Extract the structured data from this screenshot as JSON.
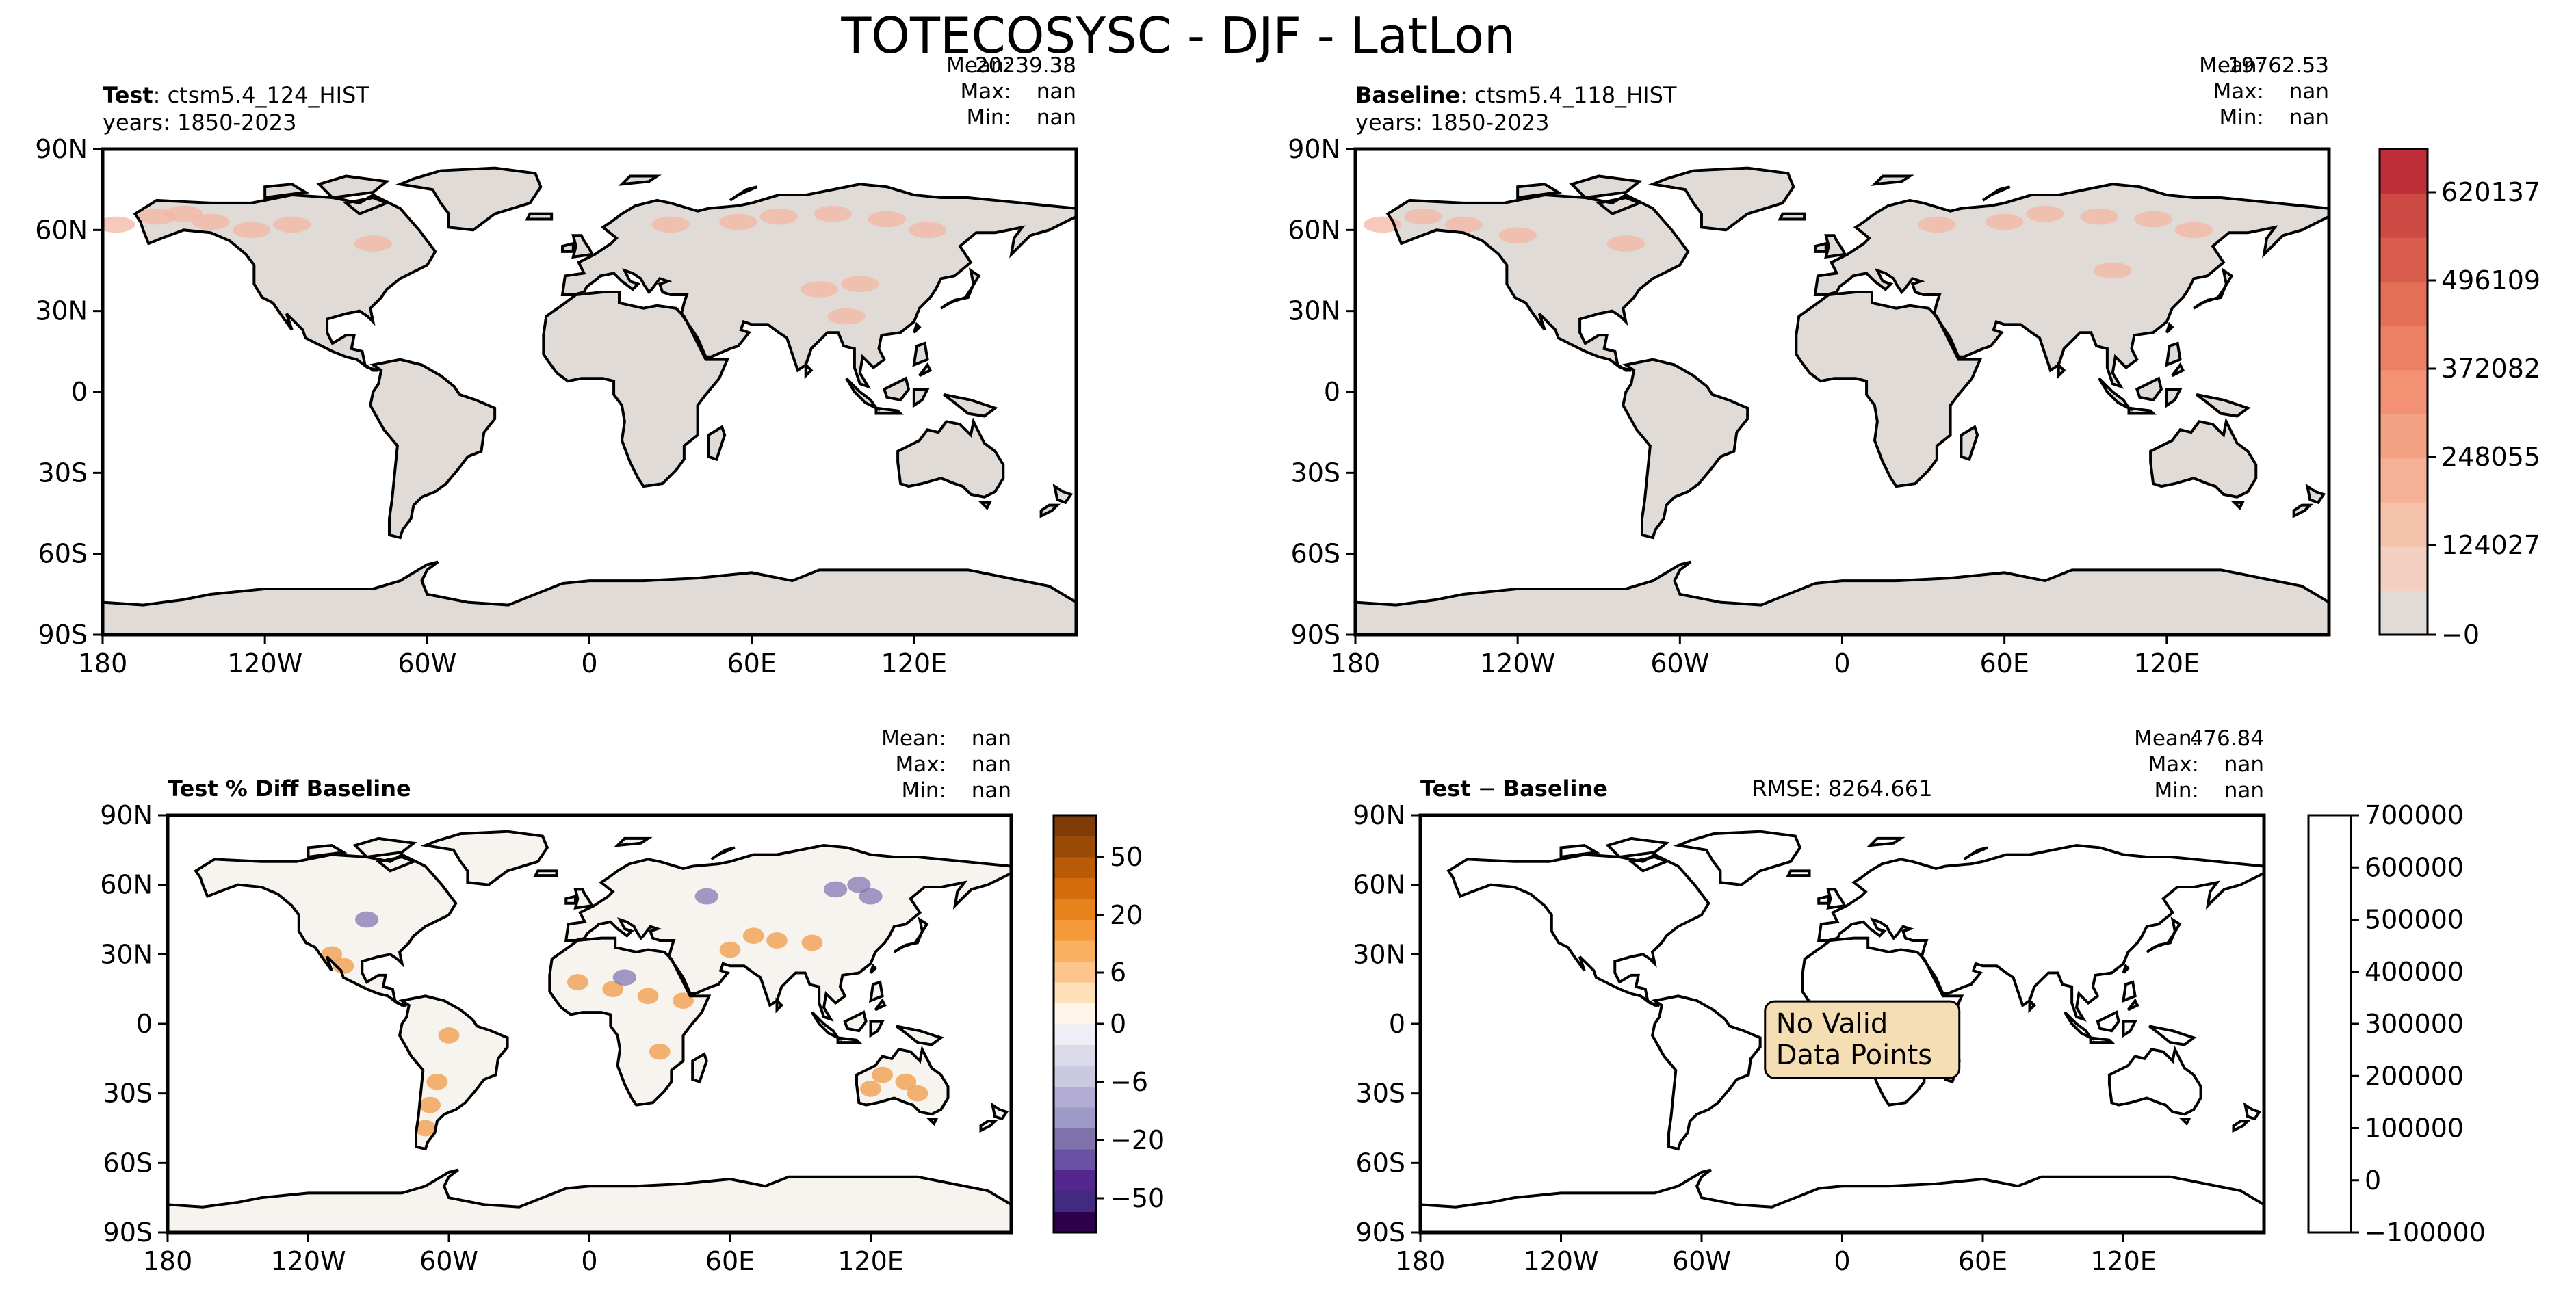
{
  "figure_title": "TOTECOSYSC - DJF - LatLon",
  "chart_data": [
    {
      "type": "heatmap",
      "panel": "test",
      "subplot_title_bold": "Test",
      "subplot_title_rest": ": ctsm5.4_124_HIST",
      "years": "years: 1850-2023",
      "stats": [
        {
          "label": "Mean:",
          "value": "20239.38"
        },
        {
          "label": "Max:",
          "value": "nan"
        },
        {
          "label": "Min:",
          "value": "nan"
        }
      ],
      "xticks": [
        "180",
        "120W",
        "60W",
        "0",
        "60E",
        "120E"
      ],
      "yticks": [
        "90N",
        "60N",
        "30N",
        "0",
        "30S",
        "60S",
        "90S"
      ],
      "xlim": [
        -180,
        180
      ],
      "ylim": [
        -90,
        90
      ],
      "land_color": "#e0dbd7",
      "highlight_color": "#f4b7a3",
      "highlights": [
        [
          -175,
          62
        ],
        [
          -160,
          65
        ],
        [
          -150,
          66
        ],
        [
          -140,
          63
        ],
        [
          -125,
          60
        ],
        [
          -110,
          62
        ],
        [
          -80,
          55
        ],
        [
          30,
          62
        ],
        [
          55,
          63
        ],
        [
          70,
          65
        ],
        [
          90,
          66
        ],
        [
          110,
          64
        ],
        [
          125,
          60
        ],
        [
          100,
          40
        ],
        [
          85,
          38
        ],
        [
          95,
          28
        ]
      ]
    },
    {
      "type": "heatmap",
      "panel": "baseline",
      "subplot_title_bold": "Baseline",
      "subplot_title_rest": ": ctsm5.4_118_HIST",
      "years": "years: 1850-2023",
      "stats": [
        {
          "label": "Mean:",
          "value": "19762.53"
        },
        {
          "label": "Max:",
          "value": "nan"
        },
        {
          "label": "Min:",
          "value": "nan"
        }
      ],
      "xticks": [
        "180",
        "120W",
        "60W",
        "0",
        "60E",
        "120E"
      ],
      "yticks": [
        "90N",
        "60N",
        "30N",
        "0",
        "30S",
        "60S",
        "90S"
      ],
      "xlim": [
        -180,
        180
      ],
      "ylim": [
        -90,
        90
      ],
      "land_color": "#e0dbd7",
      "highlight_color": "#f4b7a3",
      "highlights": [
        [
          -170,
          62
        ],
        [
          -155,
          65
        ],
        [
          -140,
          62
        ],
        [
          -120,
          58
        ],
        [
          -80,
          55
        ],
        [
          35,
          62
        ],
        [
          60,
          63
        ],
        [
          75,
          66
        ],
        [
          95,
          65
        ],
        [
          115,
          64
        ],
        [
          130,
          60
        ],
        [
          100,
          45
        ]
      ],
      "colorbar": {
        "ticks": [
          "620137",
          "496109",
          "372082",
          "248055",
          "124027",
          "−0"
        ],
        "colors": [
          "#e0dbd7",
          "#f2cfc1",
          "#f4c1ab",
          "#f5b196",
          "#f4a284",
          "#f29173",
          "#ec8065",
          "#e46f57",
          "#d85d4c",
          "#cc4a43",
          "#bf2d38"
        ]
      }
    },
    {
      "type": "heatmap",
      "panel": "percent_diff",
      "subplot_title": "Test % Diff Baseline",
      "stats": [
        {
          "label": "Mean:",
          "value": "nan"
        },
        {
          "label": "Max:",
          "value": "nan"
        },
        {
          "label": "Min:",
          "value": "nan"
        }
      ],
      "xticks": [
        "180",
        "120W",
        "60W",
        "0",
        "60E",
        "120E"
      ],
      "yticks": [
        "90N",
        "60N",
        "30N",
        "0",
        "30S",
        "60S",
        "90S"
      ],
      "xlim": [
        -180,
        180
      ],
      "ylim": [
        -90,
        90
      ],
      "land_color": "#f7f3ef",
      "orange_spots": [
        [
          -110,
          30
        ],
        [
          -105,
          25
        ],
        [
          -65,
          -25
        ],
        [
          -68,
          -35
        ],
        [
          -70,
          -45
        ],
        [
          -5,
          18
        ],
        [
          10,
          15
        ],
        [
          25,
          12
        ],
        [
          40,
          10
        ],
        [
          60,
          32
        ],
        [
          70,
          38
        ],
        [
          80,
          36
        ],
        [
          95,
          35
        ],
        [
          30,
          -12
        ],
        [
          125,
          -22
        ],
        [
          135,
          -25
        ],
        [
          140,
          -30
        ],
        [
          120,
          -28
        ],
        [
          -60,
          -5
        ]
      ],
      "purple_spots": [
        [
          105,
          58
        ],
        [
          115,
          60
        ],
        [
          120,
          55
        ],
        [
          50,
          55
        ],
        [
          15,
          20
        ],
        [
          -95,
          45
        ]
      ],
      "colorbar": {
        "ticks": [
          "50",
          "20",
          "6",
          "0",
          "−6",
          "−20",
          "−50"
        ],
        "colors": [
          "#2d004b",
          "#412a80",
          "#54278f",
          "#6a51a3",
          "#8073ac",
          "#9e9ac8",
          "#b2abd2",
          "#cbc9e2",
          "#dadaeb",
          "#efedf5",
          "#fef5e8",
          "#fde0b7",
          "#fdc58c",
          "#fbb061",
          "#f49a3b",
          "#e6841b",
          "#d46c0e",
          "#b85a06",
          "#9a4a06",
          "#7f3b08"
        ]
      }
    },
    {
      "type": "heatmap",
      "panel": "difference",
      "subplot_title_bold": "Test",
      "subplot_title_minus": " − ",
      "subplot_title_bold2": "Baseline",
      "rmse": "RMSE: 8264.661",
      "stats": [
        {
          "label": "Mean:",
          "value": "476.84"
        },
        {
          "label": "Max:",
          "value": "nan"
        },
        {
          "label": "Min:",
          "value": "nan"
        }
      ],
      "xticks": [
        "180",
        "120W",
        "60W",
        "0",
        "60E",
        "120E"
      ],
      "yticks": [
        "90N",
        "60N",
        "30N",
        "0",
        "30S",
        "60S",
        "90S"
      ],
      "xlim": [
        -180,
        180
      ],
      "ylim": [
        -90,
        90
      ],
      "annotation": [
        "No Valid",
        "Data Points"
      ],
      "annotation_color": "#f5deb3",
      "colorbar": {
        "ticks": [
          "700000",
          "600000",
          "500000",
          "400000",
          "300000",
          "200000",
          "100000",
          "0",
          "−100000"
        ],
        "colors": [
          "#ffffff"
        ]
      }
    }
  ]
}
